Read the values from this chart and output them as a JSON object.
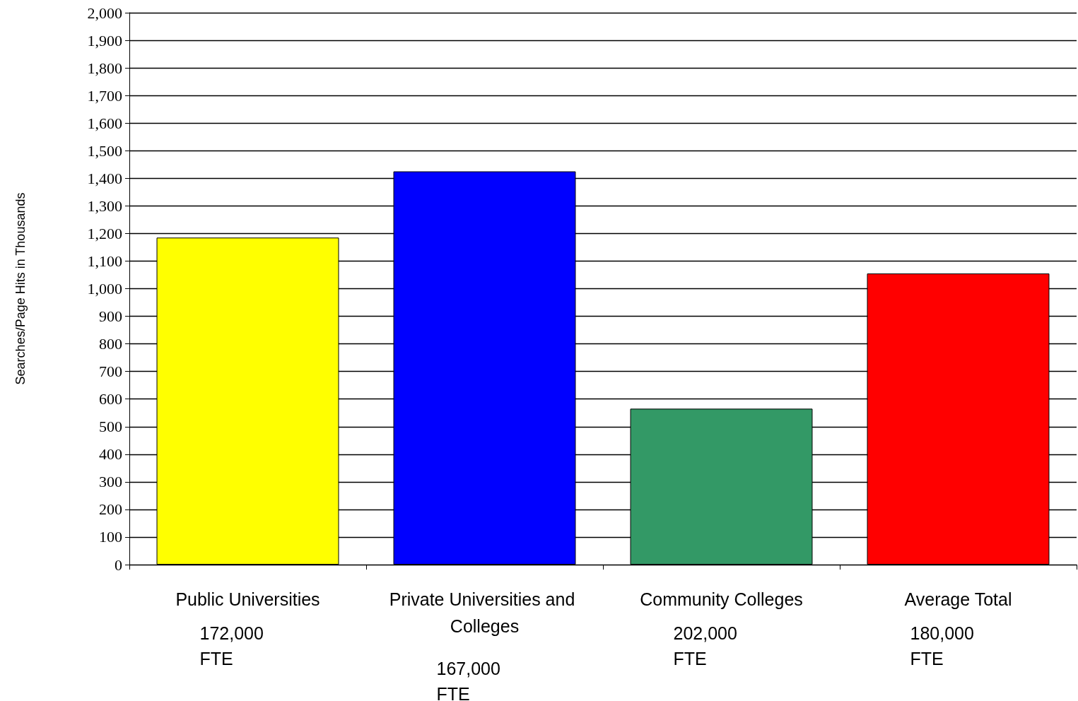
{
  "chart_data": {
    "type": "bar",
    "ylabel": "Searches/Page Hits in Thousands",
    "categories": [
      "Public Universities",
      "Private Universities and Colleges",
      "Community Colleges",
      "Average Total"
    ],
    "values": [
      1185,
      1425,
      565,
      1055
    ],
    "colors": [
      "#ffff00",
      "#0000ff",
      "#339966",
      "#ff0000"
    ],
    "ylim": [
      0,
      2000
    ],
    "yticks": [
      0,
      100,
      200,
      300,
      400,
      500,
      600,
      700,
      800,
      900,
      {
        "value": 1000,
        "label": "1,000"
      },
      {
        "value": 1100,
        "label": "1,100"
      },
      {
        "value": 1200,
        "label": "1,200"
      },
      {
        "value": 1300,
        "label": "1,300"
      },
      {
        "value": 1400,
        "label": "1,400"
      },
      {
        "value": 1500,
        "label": "1,500"
      },
      {
        "value": 1600,
        "label": "1,600"
      },
      {
        "value": 1700,
        "label": "1,700"
      },
      {
        "value": 1800,
        "label": "1,800"
      },
      {
        "value": 1900,
        "label": "1,900"
      },
      {
        "value": 2000,
        "label": "2,000"
      }
    ],
    "grid": "y",
    "annotations": [
      "172,000\nFTE",
      "167,000\nFTE",
      "202,000\nFTE",
      "180,000\nFTE"
    ]
  }
}
